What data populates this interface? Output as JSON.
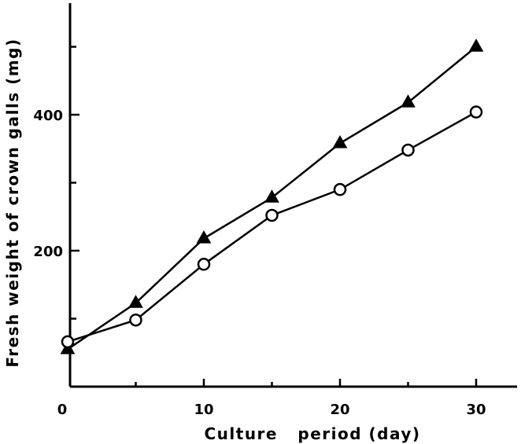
{
  "chart_data": {
    "type": "line",
    "title": "",
    "xlabel": "Culture   period (day)",
    "ylabel": "Fresh weight of crown galls (mg)",
    "xlim": [
      0,
      33
    ],
    "ylim": [
      0,
      560
    ],
    "xticks": [
      0,
      10,
      20,
      30
    ],
    "xticks_minor": [
      5,
      15,
      25
    ],
    "yticks": [
      200,
      400
    ],
    "yticks_minor": [
      100,
      300,
      500
    ],
    "grid": false,
    "legend": "none",
    "series": [
      {
        "marker": "filled-triangle",
        "x": [
          0,
          5,
          10,
          15,
          20,
          25,
          30
        ],
        "y": [
          55,
          123,
          218,
          278,
          358,
          418,
          500
        ]
      },
      {
        "marker": "open-circle",
        "x": [
          0,
          5,
          10,
          15,
          20,
          25,
          30
        ],
        "y": [
          66,
          98,
          180,
          252,
          290,
          348,
          404
        ]
      }
    ]
  }
}
